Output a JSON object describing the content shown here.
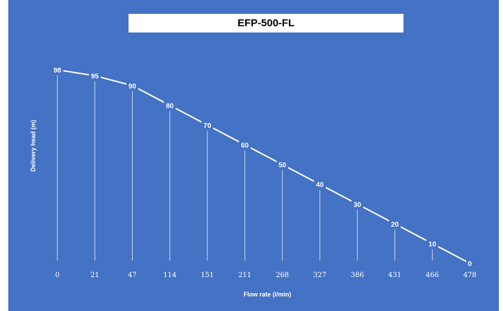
{
  "chart_data": {
    "type": "line",
    "title": "EFP-500-FL",
    "xlabel": "Flow rate (l/min)",
    "ylabel": "Delivery head (m)",
    "categories": [
      "0",
      "21",
      "47",
      "114",
      "151",
      "211",
      "268",
      "327",
      "386",
      "431",
      "466",
      "478"
    ],
    "series": [
      {
        "values": [
          98,
          95,
          90,
          80,
          70,
          60,
          50,
          40,
          30,
          20,
          10,
          0
        ]
      }
    ],
    "ylim": [
      0,
      98
    ],
    "grid": false,
    "drop_lines": true,
    "data_labels": true,
    "legend": "none"
  },
  "colors": {
    "background": "#4472c4",
    "line": "#ffffff",
    "drop_line": "#cfd9ee",
    "text": "#ffffff"
  }
}
